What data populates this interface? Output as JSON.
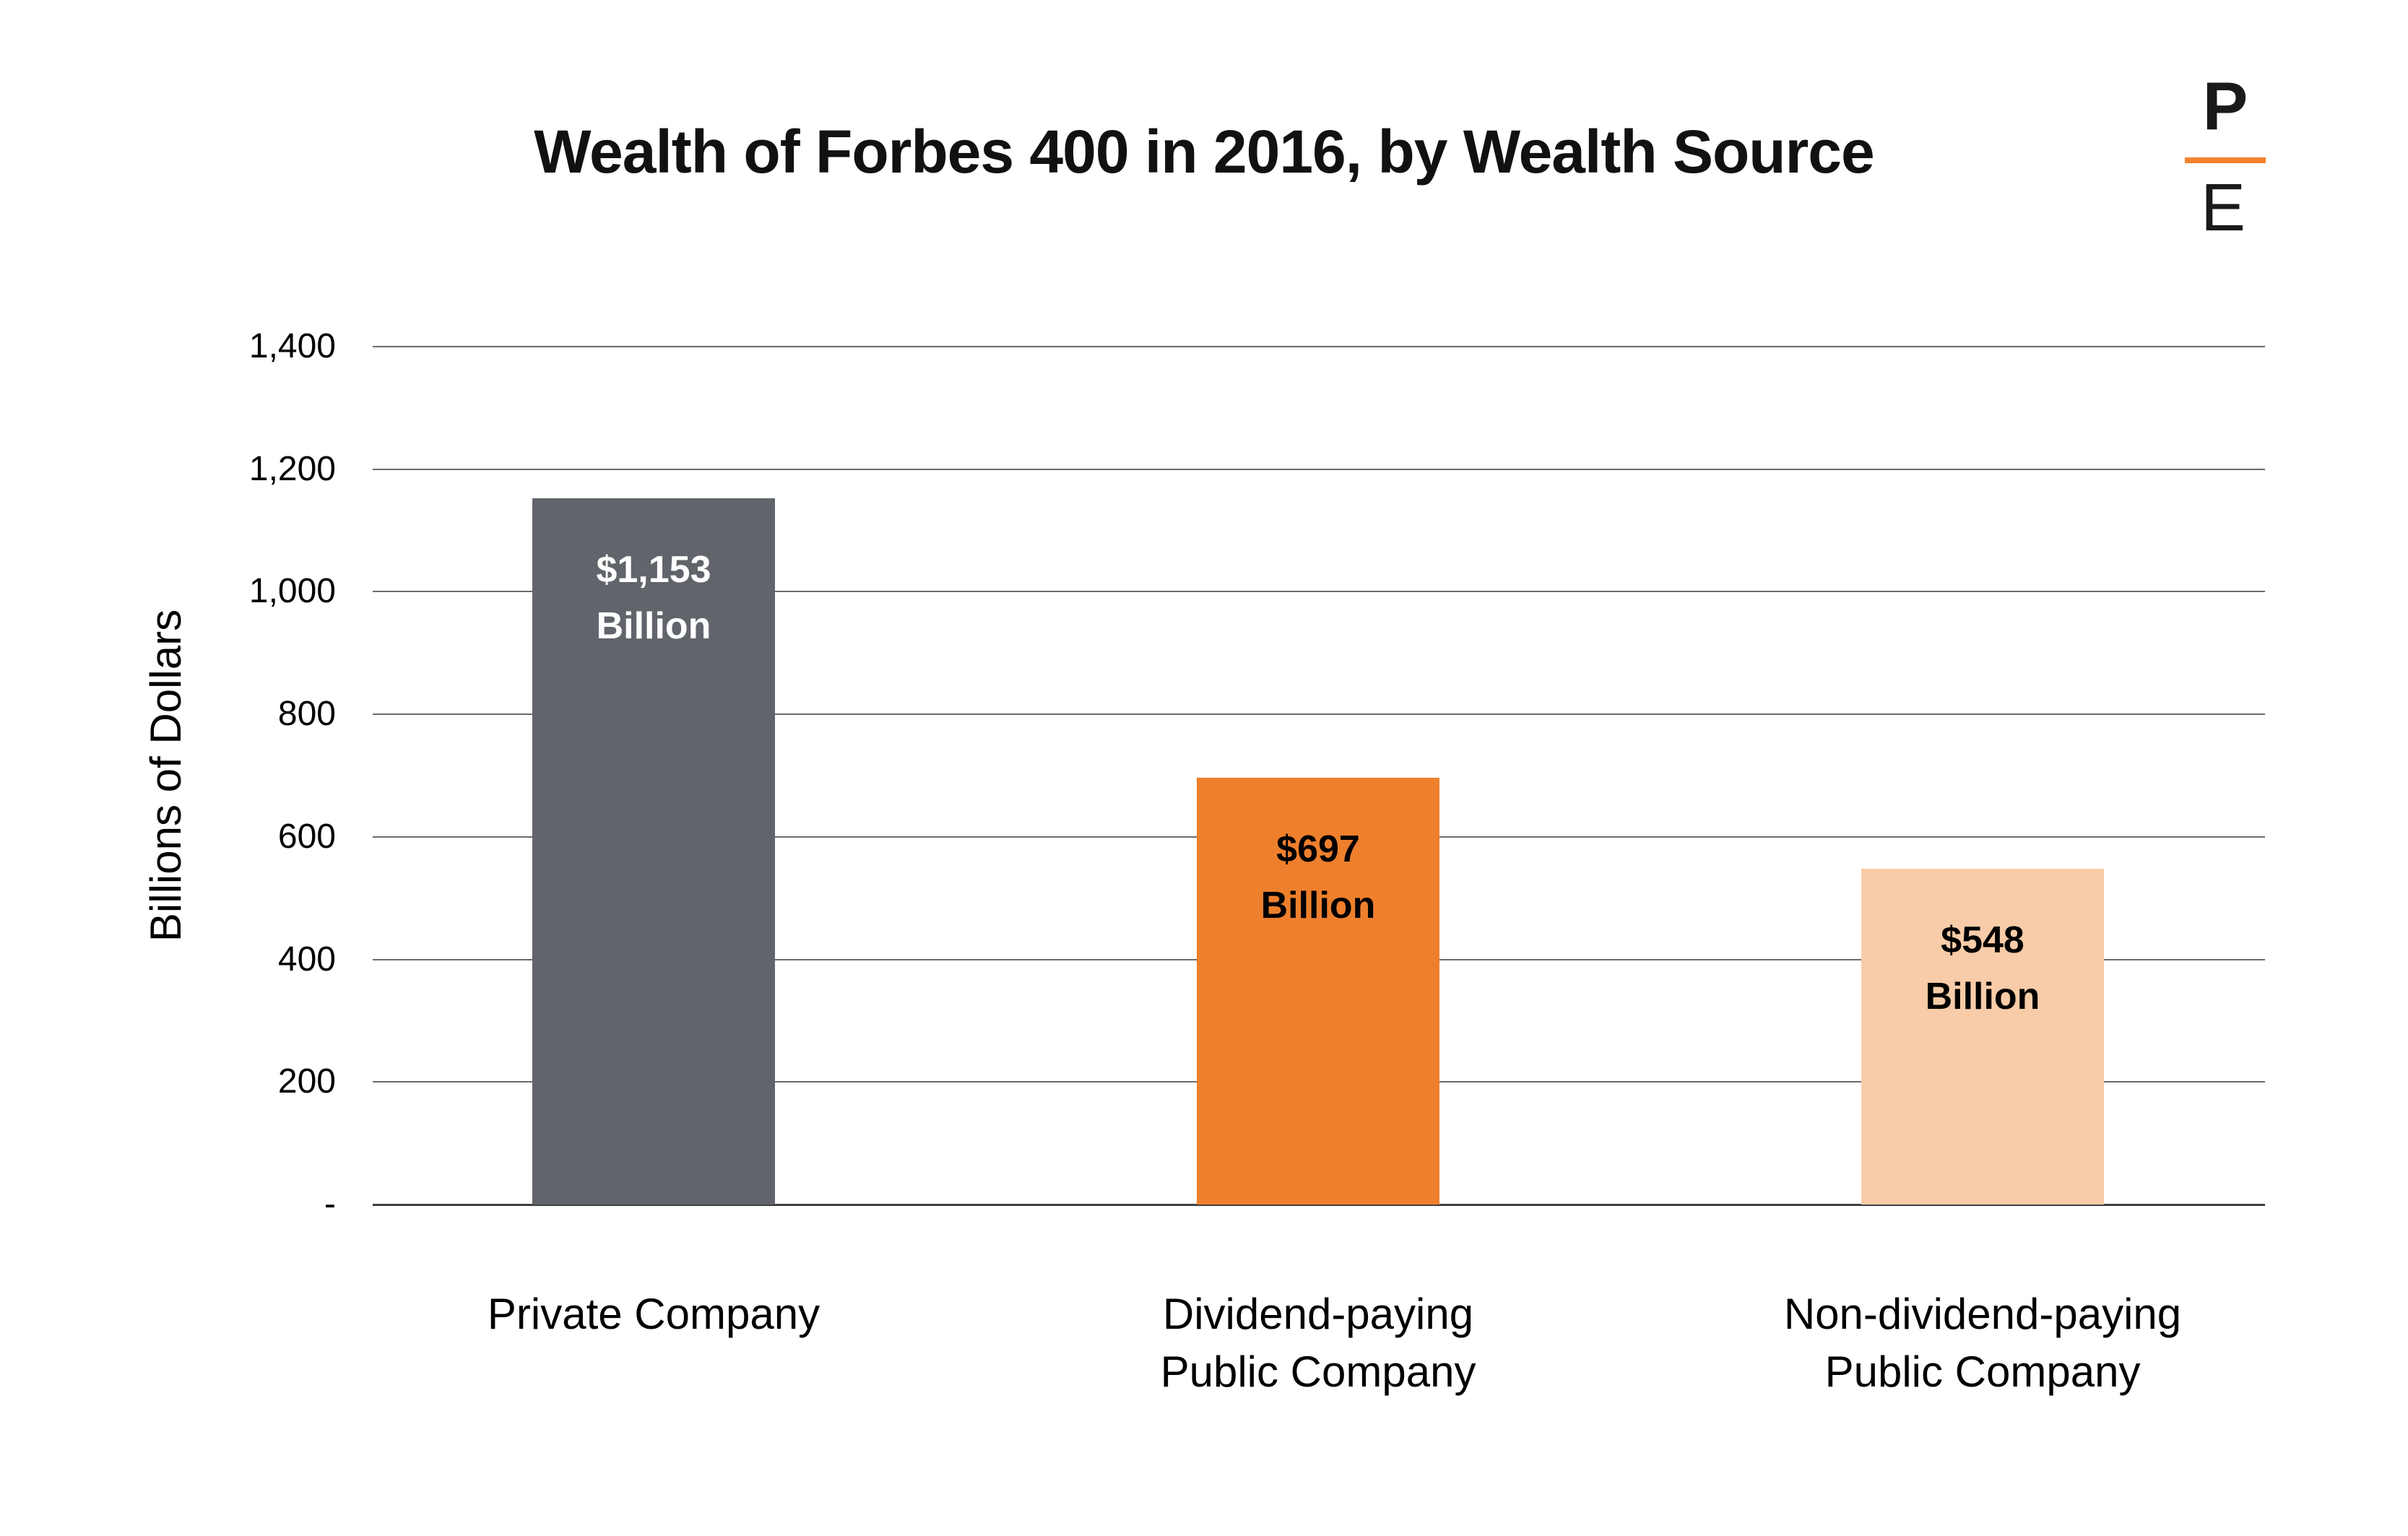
{
  "title": "Wealth of Forbes 400 in 2016, by Wealth Source",
  "logo": {
    "top_letter": "P",
    "bottom_letter": "E"
  },
  "colors": {
    "bar_gray": "#61656B",
    "bar_orange": "#EE7F2D",
    "bar_peach": "#F8CCA8",
    "logo_orange": "#F5822B",
    "gridline": "#6B6B6B",
    "axis_line": "#404040",
    "title_text": "#111111",
    "value_label_on_gray": "#FFFFFF",
    "value_label_on_orange": "#000000"
  },
  "chart_data": {
    "type": "bar",
    "title": "Wealth of Forbes 400 in 2016, by Wealth Source",
    "xlabel": "",
    "ylabel": "Billions of Dollars",
    "ylim": [
      0,
      1400
    ],
    "ytick_step": 200,
    "ytick_labels_bottom_to_top": [
      "-",
      "200",
      "400",
      "600",
      "800",
      "1,000",
      "1,200",
      "1,400"
    ],
    "grid": true,
    "legend": false,
    "categories": [
      "Private Company",
      "Dividend-paying Public Company",
      "Non-dividend-paying Public Company"
    ],
    "values": [
      1153,
      697,
      548
    ],
    "bars": [
      {
        "category_lines": [
          "Private Company"
        ],
        "value": 1153,
        "label_lines": [
          "$1,153",
          "Billion"
        ],
        "color": "#61656B",
        "label_color": "#FFFFFF"
      },
      {
        "category_lines": [
          "Dividend-paying",
          "Public Company"
        ],
        "value": 697,
        "label_lines": [
          "$697",
          "Billion"
        ],
        "color": "#EE7F2D",
        "label_color": "#000000"
      },
      {
        "category_lines": [
          "Non-dividend-paying",
          "Public Company"
        ],
        "value": 548,
        "label_lines": [
          "$548",
          "Billion"
        ],
        "color": "#F8CCA8",
        "label_color": "#000000"
      }
    ]
  }
}
